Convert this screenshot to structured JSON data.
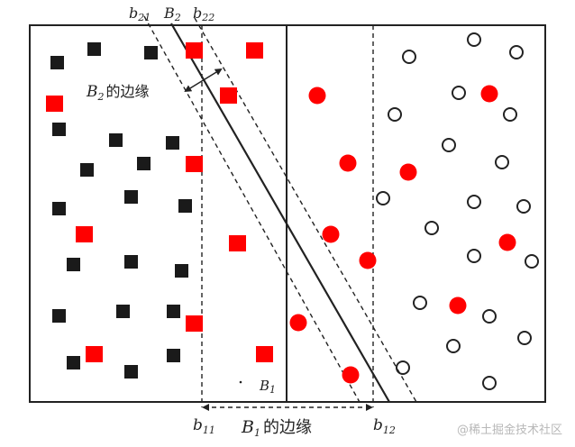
{
  "labels": {
    "b21": {
      "base": "b",
      "sub": "21"
    },
    "B2": {
      "base": "B",
      "sub": "2"
    },
    "b22": {
      "base": "b",
      "sub": "22"
    },
    "b11": {
      "base": "b",
      "sub": "11"
    },
    "b12": {
      "base": "b",
      "sub": "12"
    },
    "B1_line": {
      "base": "B",
      "sub": "1"
    },
    "B2_margin": {
      "base": "B",
      "sub": "2",
      "text": "的边缘"
    },
    "B1_margin": {
      "base": "B",
      "sub": "1",
      "text": "的边缘"
    }
  },
  "watermark": "@稀土掘金技术社区",
  "colors": {
    "frame": "#222222",
    "black_square": "#1a1a1a",
    "red_marker": "#ff0000",
    "circle_stroke": "#222222",
    "watermark": "#b8b8b8"
  },
  "marker_kinds": [
    "black-square",
    "red-square",
    "red-circle",
    "open-circle"
  ]
}
